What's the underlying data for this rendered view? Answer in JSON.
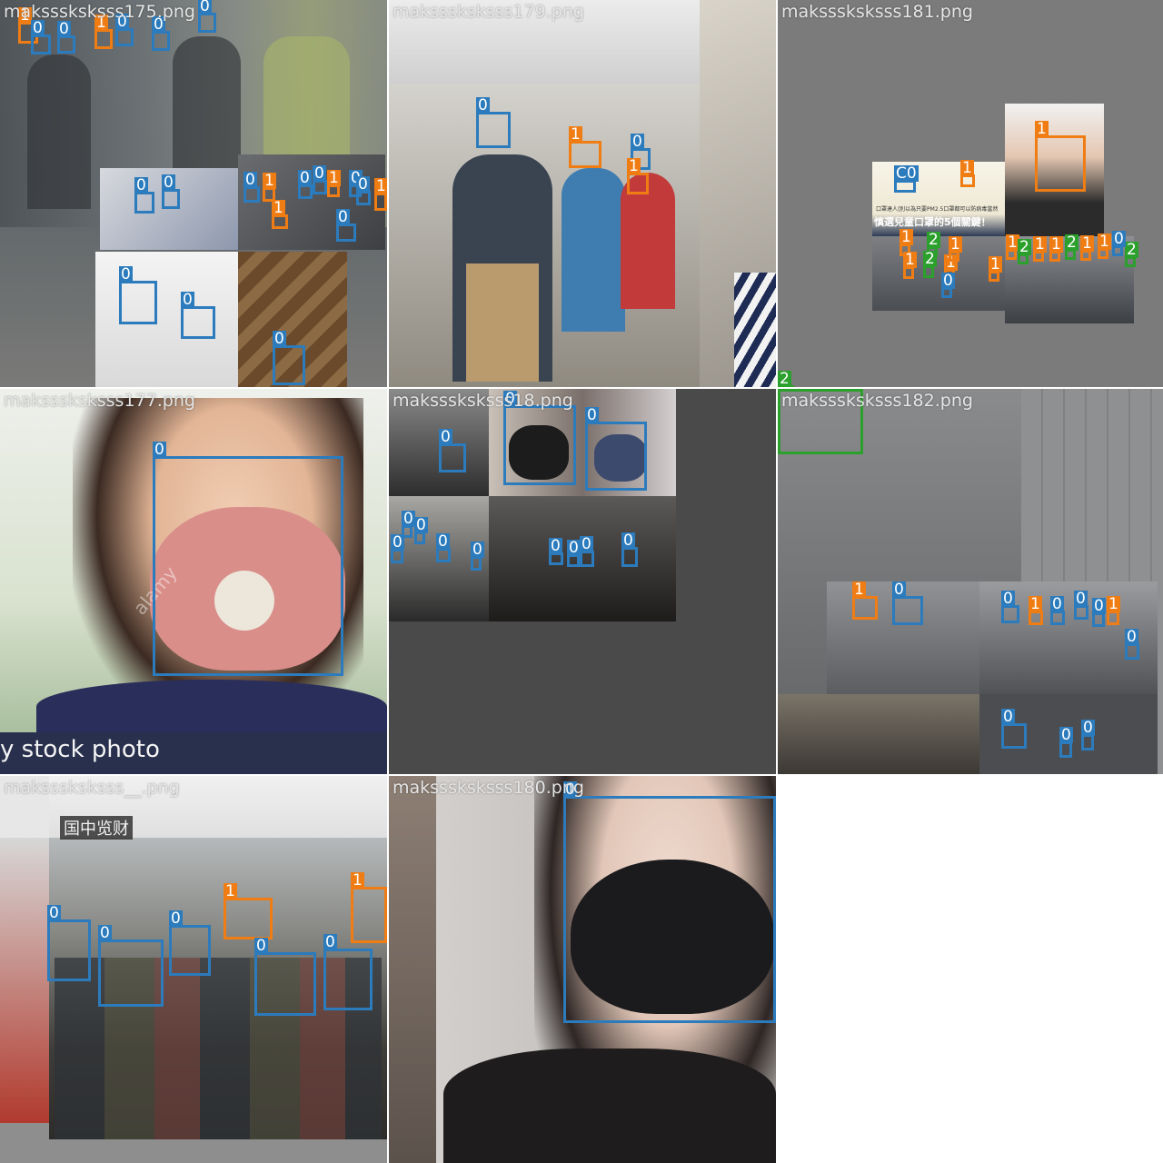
{
  "mosaic": {
    "tiles": [
      {
        "file": "maksssksksss175.png",
        "boxes": [
          "0",
          "1",
          "0",
          "0",
          "1",
          "0",
          "0",
          "0",
          "0",
          "0",
          "1",
          "1",
          "0",
          "0",
          "1",
          "0",
          "1",
          "0",
          "0",
          "0",
          "0",
          "0"
        ]
      },
      {
        "file": "maksssksksss179.png",
        "boxes": [
          "0",
          "1",
          "0",
          "1"
        ]
      },
      {
        "file": "maksssksksss181.png",
        "boxes": [
          "1",
          "C0",
          "1",
          "1",
          "2",
          "1",
          "2",
          "1",
          "1",
          "1",
          "2",
          "1",
          "1",
          "2",
          "1",
          "1",
          "1",
          "0",
          "2",
          "0",
          "2"
        ],
        "inset_text_1": "口罩達人|別以為只要PM2.5口罩都可以防病毒當然",
        "inset_text_2": "慎選兒童口罩的5個關鍵！"
      },
      {
        "file": "maksssksksss177.png",
        "boxes": [
          "0"
        ],
        "caption": "y stock photo",
        "watermark": "alamy"
      },
      {
        "file": "maksssksksss18.png",
        "boxes": [
          "0",
          "0",
          "0",
          "0",
          "0",
          "0",
          "0",
          "0",
          "0",
          "0",
          "0",
          "0"
        ]
      },
      {
        "file": "maksssksksss182.png",
        "boxes": [
          "2",
          "1",
          "0",
          "0",
          "1",
          "0",
          "0",
          "0",
          "1",
          "0",
          "0",
          "0",
          "0"
        ]
      },
      {
        "file": "maksssksksss__.png",
        "boxes": [
          "0",
          "0",
          "0",
          "1",
          "0",
          "0",
          "1"
        ],
        "banner": "国中览财"
      },
      {
        "file": "maksssksksss180.png",
        "boxes": [
          "0"
        ]
      }
    ]
  },
  "colors": {
    "class0": "#2b7bbd",
    "class1": "#ef7d14",
    "class2": "#2ca02c"
  }
}
